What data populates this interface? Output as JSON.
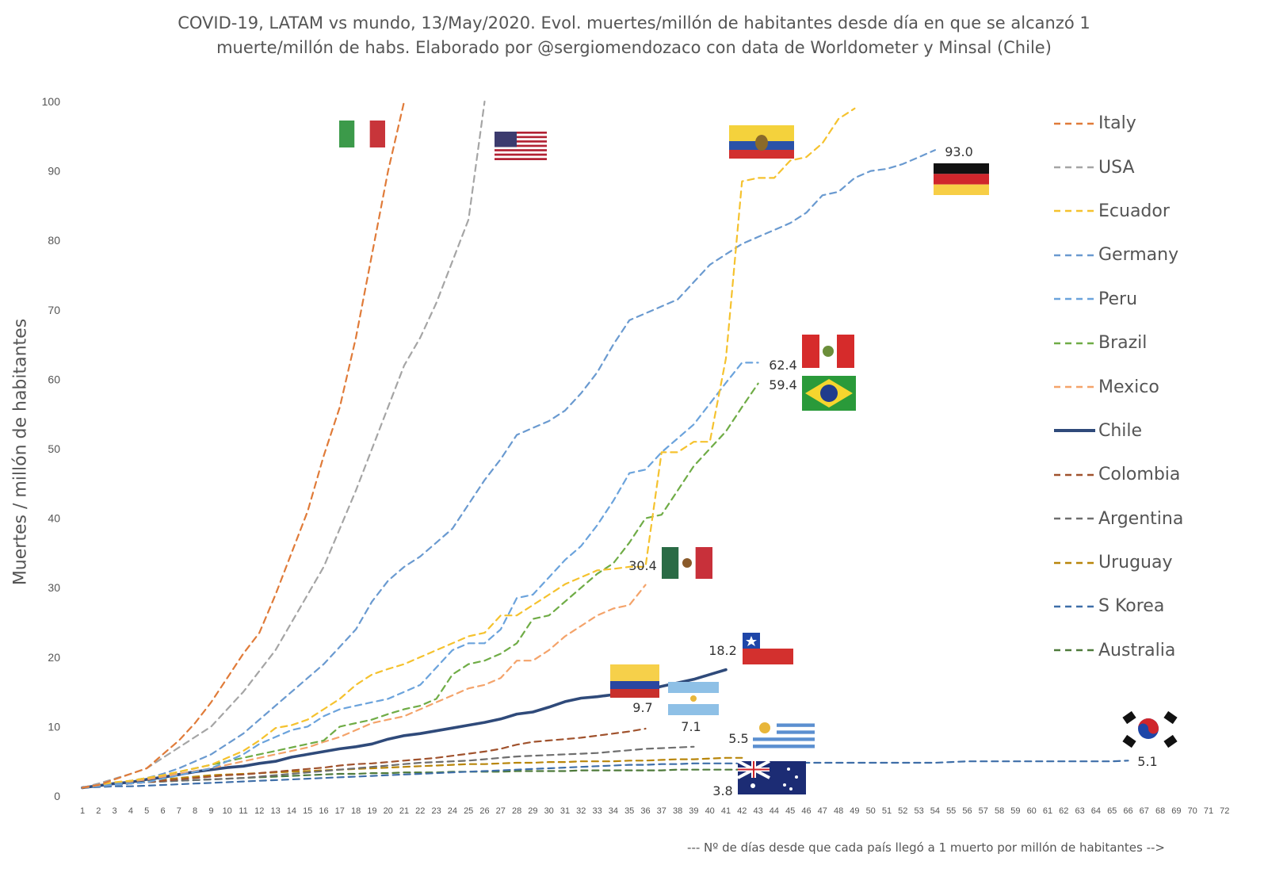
{
  "title": {
    "line1": "COVID-19, LATAM vs mundo, 13/May/2020. Evol. muertes/millón de habitantes desde día en que se alcanzó 1",
    "line2": "muerte/millón de habs. Elaborado por @sergiomendozaco con data de Worldometer y Minsal (Chile)"
  },
  "chart_data": {
    "type": "line",
    "title": "COVID-19, LATAM vs mundo, 13/May/2020. Evol. muertes/millón de habitantes desde día en que se alcanzó 1 muerte/millón de habs. Elaborado por @sergiomendozaco con data de Worldometer y Minsal (Chile)",
    "xlabel": "--- Nº de días desde que cada país llegó a 1 muerto por millón de habitantes -->",
    "ylabel": "Muertes / millón de habitantes",
    "xlim": [
      1,
      72
    ],
    "ylim": [
      0,
      100
    ],
    "yticks": [
      0,
      10,
      20,
      30,
      40,
      50,
      60,
      70,
      80,
      90,
      100
    ],
    "grid": false,
    "legend": "right",
    "series": [
      {
        "name": "Italy",
        "color": "#E07B39",
        "dash": true,
        "width": 2.2,
        "values": [
          1.2,
          1.6,
          2.4,
          3.2,
          4.0,
          6.0,
          8.0,
          10.5,
          13.5,
          17.0,
          20.5,
          23.5,
          29.0,
          35.0,
          41.0,
          49.0,
          56.0,
          66.0,
          78.0,
          90.0,
          100.0
        ]
      },
      {
        "name": "USA",
        "color": "#A5A5A5",
        "dash": true,
        "width": 2.2,
        "values": [
          1.2,
          1.8,
          2.5,
          3.2,
          4.0,
          5.5,
          7.0,
          8.5,
          10.0,
          12.5,
          15.0,
          18.0,
          21.0,
          25.0,
          29.0,
          33.0,
          38.5,
          44.0,
          50.0,
          56.0,
          62.0,
          66.0,
          71.0,
          77.0,
          83.0,
          100.0
        ]
      },
      {
        "name": "Ecuador",
        "color": "#F5C22E",
        "dash": true,
        "width": 2.2,
        "values": [
          1.2,
          1.6,
          2.0,
          2.2,
          2.6,
          3.0,
          3.5,
          4.0,
          4.5,
          5.5,
          6.5,
          8.0,
          9.8,
          10.2,
          11.0,
          12.5,
          14.0,
          16.0,
          17.5,
          18.3,
          19.0,
          20.0,
          21.0,
          22.0,
          23.0,
          23.5,
          26.0,
          26.0,
          27.5,
          29.0,
          30.5,
          31.5,
          32.5,
          32.7,
          33.0,
          33.0,
          49.5,
          49.5,
          51.0,
          51.0,
          63.0,
          88.5,
          89.0,
          89.0,
          91.5,
          92.0,
          94.0,
          97.5,
          99.0
        ]
      },
      {
        "name": "Germany",
        "color": "#6A9AD0",
        "dash": true,
        "width": 2.2,
        "values": [
          1.2,
          1.5,
          1.8,
          2.2,
          2.6,
          3.2,
          4.0,
          5.0,
          6.0,
          7.5,
          9.0,
          11.0,
          13.0,
          15.0,
          17.0,
          19.0,
          21.5,
          24.0,
          28.0,
          31.0,
          33.0,
          34.5,
          36.5,
          38.5,
          42.0,
          45.5,
          48.5,
          52.0,
          53.0,
          54.0,
          55.5,
          58.0,
          61.0,
          65.0,
          68.5,
          69.5,
          70.5,
          71.5,
          74.0,
          76.5,
          78.0,
          79.5,
          80.5,
          81.5,
          82.5,
          84.0,
          86.5,
          87.0,
          89.0,
          90.0,
          90.3,
          91.0,
          92.0,
          93.0
        ]
      },
      {
        "name": "Peru",
        "color": "#6BA3DC",
        "dash": true,
        "width": 2.2,
        "values": [
          1.2,
          1.4,
          1.6,
          1.8,
          2.0,
          2.5,
          3.0,
          3.5,
          4.0,
          5.0,
          6.0,
          7.5,
          8.5,
          9.5,
          10.0,
          11.5,
          12.5,
          13.0,
          13.5,
          14.0,
          15.0,
          16.0,
          18.5,
          21.0,
          22.0,
          22.0,
          24.0,
          28.5,
          29.0,
          31.5,
          34.0,
          36.0,
          39.0,
          42.5,
          46.5,
          47.0,
          49.5,
          51.5,
          53.5,
          56.5,
          59.5,
          62.4,
          62.4
        ]
      },
      {
        "name": "Brazil",
        "color": "#6FAC46",
        "dash": true,
        "width": 2.2,
        "values": [
          1.2,
          1.5,
          1.8,
          2.2,
          2.6,
          3.0,
          3.5,
          4.0,
          4.5,
          5.0,
          5.5,
          6.0,
          6.5,
          7.0,
          7.5,
          8.0,
          10.0,
          10.5,
          11.0,
          11.8,
          12.5,
          13.0,
          14.0,
          17.5,
          19.0,
          19.5,
          20.5,
          22.0,
          25.5,
          26.0,
          28.0,
          30.0,
          32.0,
          33.5,
          36.5,
          40.0,
          40.5,
          44.0,
          47.5,
          50.0,
          52.5,
          56.0,
          59.4
        ]
      },
      {
        "name": "Mexico",
        "color": "#F4A36A",
        "dash": true,
        "width": 2.2,
        "values": [
          1.2,
          1.5,
          1.8,
          2.1,
          2.4,
          2.8,
          3.2,
          3.6,
          4.0,
          4.5,
          5.0,
          5.5,
          6.0,
          6.5,
          7.0,
          7.8,
          8.5,
          9.5,
          10.5,
          11.0,
          11.5,
          12.5,
          13.5,
          14.5,
          15.5,
          16.0,
          17.0,
          19.5,
          19.5,
          21.0,
          23.0,
          24.5,
          26.0,
          27.0,
          27.5,
          30.4
        ]
      },
      {
        "name": "Chile",
        "color": "#2F4A7A",
        "dash": false,
        "width": 3.6,
        "values": [
          1.2,
          1.5,
          1.8,
          2.0,
          2.4,
          2.7,
          3.1,
          3.5,
          3.8,
          4.1,
          4.3,
          4.7,
          5.0,
          5.6,
          6.0,
          6.4,
          6.8,
          7.1,
          7.5,
          8.2,
          8.7,
          9.0,
          9.4,
          9.8,
          10.2,
          10.6,
          11.1,
          11.8,
          12.1,
          12.8,
          13.6,
          14.1,
          14.3,
          14.6,
          14.8,
          15.2,
          15.8,
          16.3,
          16.8,
          17.5,
          18.2
        ]
      },
      {
        "name": "Colombia",
        "color": "#A0522D",
        "dash": true,
        "width": 2.2,
        "values": [
          1.2,
          1.4,
          1.6,
          1.8,
          2.0,
          2.2,
          2.4,
          2.6,
          2.8,
          3.0,
          3.1,
          3.3,
          3.5,
          3.7,
          3.9,
          4.1,
          4.4,
          4.6,
          4.7,
          4.9,
          5.1,
          5.3,
          5.5,
          5.8,
          6.1,
          6.4,
          6.8,
          7.4,
          7.8,
          8.0,
          8.2,
          8.4,
          8.7,
          9.0,
          9.3,
          9.7
        ]
      },
      {
        "name": "Argentina",
        "color": "#6E6E6E",
        "dash": true,
        "width": 2.2,
        "values": [
          1.2,
          1.4,
          1.6,
          1.8,
          2.0,
          2.1,
          2.2,
          2.3,
          2.4,
          2.5,
          2.6,
          2.8,
          3.0,
          3.2,
          3.4,
          3.6,
          3.8,
          4.0,
          4.2,
          4.4,
          4.6,
          4.8,
          4.9,
          5.0,
          5.1,
          5.3,
          5.5,
          5.7,
          5.8,
          5.9,
          6.0,
          6.1,
          6.2,
          6.4,
          6.6,
          6.8,
          6.9,
          7.0,
          7.1
        ]
      },
      {
        "name": "Uruguay",
        "color": "#B8860B",
        "dash": true,
        "width": 2.2,
        "values": [
          1.2,
          1.5,
          1.8,
          2.0,
          2.2,
          2.4,
          2.6,
          2.8,
          3.0,
          3.1,
          3.2,
          3.3,
          3.4,
          3.5,
          3.6,
          3.7,
          3.8,
          3.9,
          4.0,
          4.1,
          4.2,
          4.3,
          4.4,
          4.5,
          4.6,
          4.6,
          4.7,
          4.8,
          4.8,
          4.9,
          4.9,
          5.0,
          5.0,
          5.0,
          5.1,
          5.1,
          5.2,
          5.3,
          5.3,
          5.4,
          5.5,
          5.5
        ]
      },
      {
        "name": "S Korea",
        "color": "#3E6EA8",
        "dash": true,
        "width": 2.2,
        "values": [
          1.2,
          1.3,
          1.4,
          1.4,
          1.5,
          1.6,
          1.7,
          1.8,
          1.9,
          2.0,
          2.1,
          2.2,
          2.3,
          2.4,
          2.5,
          2.6,
          2.7,
          2.8,
          2.9,
          3.0,
          3.1,
          3.2,
          3.3,
          3.4,
          3.5,
          3.6,
          3.7,
          3.8,
          3.9,
          4.0,
          4.1,
          4.2,
          4.3,
          4.4,
          4.5,
          4.5,
          4.6,
          4.6,
          4.7,
          4.7,
          4.7,
          4.7,
          4.8,
          4.8,
          4.8,
          4.8,
          4.8,
          4.8,
          4.8,
          4.8,
          4.8,
          4.8,
          4.8,
          4.8,
          4.9,
          5.0,
          5.0,
          5.0,
          5.0,
          5.0,
          5.0,
          5.0,
          5.0,
          5.0,
          5.0,
          5.1
        ]
      },
      {
        "name": "Australia",
        "color": "#4E7A3A",
        "dash": true,
        "width": 2.2,
        "values": [
          1.2,
          1.4,
          1.6,
          1.8,
          2.0,
          2.1,
          2.2,
          2.3,
          2.4,
          2.5,
          2.6,
          2.7,
          2.8,
          2.9,
          3.0,
          3.1,
          3.2,
          3.2,
          3.3,
          3.3,
          3.4,
          3.4,
          3.4,
          3.5,
          3.5,
          3.5,
          3.5,
          3.6,
          3.6,
          3.6,
          3.6,
          3.7,
          3.7,
          3.7,
          3.7,
          3.7,
          3.7,
          3.8,
          3.8,
          3.8,
          3.8,
          3.8
        ]
      }
    ],
    "annotations": [
      {
        "text": "93.0",
        "series": "Germany",
        "x": 55,
        "y": 93.0
      },
      {
        "text": "62.4",
        "series": "Peru",
        "x": 44,
        "y": 62.4
      },
      {
        "text": "59.4",
        "series": "Brazil",
        "x": 44,
        "y": 59.4
      },
      {
        "text": "30.4",
        "series": "Mexico",
        "x": 35,
        "y": 30.4
      },
      {
        "text": "18.2",
        "series": "Chile",
        "x": 41,
        "y": 18.2
      },
      {
        "text": "9.7",
        "series": "Colombia",
        "x": 36,
        "y": 9.7
      },
      {
        "text": "7.1",
        "series": "Argentina",
        "x": 39,
        "y": 7.1
      },
      {
        "text": "5.5",
        "series": "Uruguay",
        "x": 42,
        "y": 5.5
      },
      {
        "text": "5.1",
        "series": "S Korea",
        "x": 66,
        "y": 5.1
      },
      {
        "text": "3.8",
        "series": "Australia",
        "x": 42,
        "y": 3.8
      }
    ]
  }
}
